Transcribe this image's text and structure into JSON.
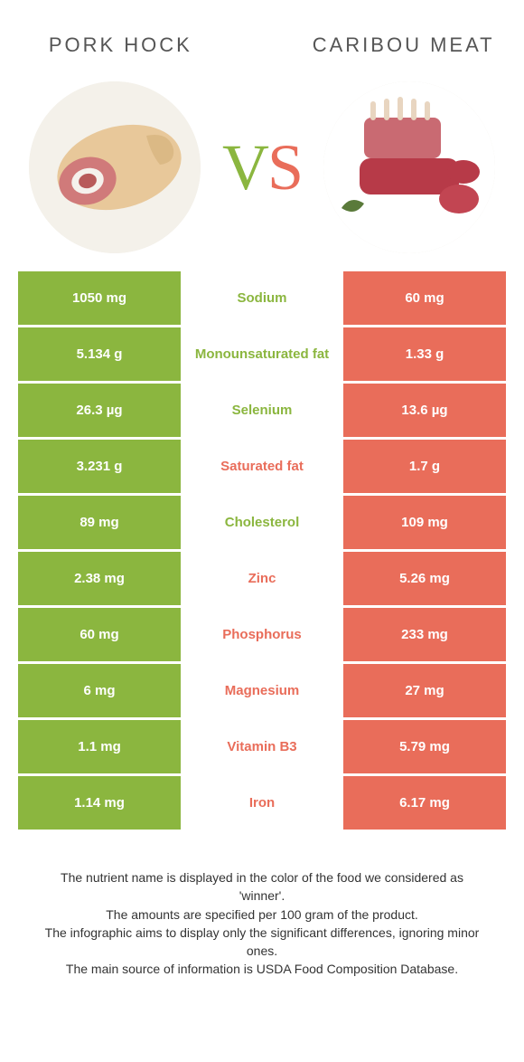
{
  "header": {
    "left_title": "Pork hock",
    "right_title": "Caribou meat",
    "vs_v": "V",
    "vs_s": "S"
  },
  "colors": {
    "green": "#8bb63f",
    "red": "#e96d5a",
    "text": "#333333",
    "header_text": "#555555",
    "bg": "#ffffff"
  },
  "rows": [
    {
      "left": "1050 mg",
      "label": "Sodium",
      "right": "60 mg",
      "winner": "left"
    },
    {
      "left": "5.134 g",
      "label": "Monounsaturated fat",
      "right": "1.33 g",
      "winner": "left"
    },
    {
      "left": "26.3 µg",
      "label": "Selenium",
      "right": "13.6 µg",
      "winner": "left"
    },
    {
      "left": "3.231 g",
      "label": "Saturated fat",
      "right": "1.7 g",
      "winner": "right"
    },
    {
      "left": "89 mg",
      "label": "Cholesterol",
      "right": "109 mg",
      "winner": "left"
    },
    {
      "left": "2.38 mg",
      "label": "Zinc",
      "right": "5.26 mg",
      "winner": "right"
    },
    {
      "left": "60 mg",
      "label": "Phosphorus",
      "right": "233 mg",
      "winner": "right"
    },
    {
      "left": "6 mg",
      "label": "Magnesium",
      "right": "27 mg",
      "winner": "right"
    },
    {
      "left": "1.1 mg",
      "label": "Vitamin B3",
      "right": "5.79 mg",
      "winner": "right"
    },
    {
      "left": "1.14 mg",
      "label": "Iron",
      "right": "6.17 mg",
      "winner": "right"
    }
  ],
  "footer": {
    "line1": "The nutrient name is displayed in the color of the food we considered as 'winner'.",
    "line2": "The amounts are specified per 100 gram of the product.",
    "line3": "The infographic aims to display only the significant differences, ignoring minor ones.",
    "line4": "The main source of information is USDA Food Composition Database."
  }
}
